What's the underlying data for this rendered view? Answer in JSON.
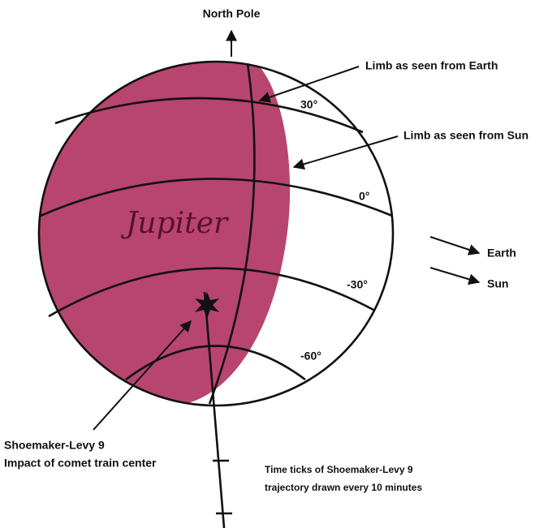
{
  "title": "North Pole",
  "limbs": {
    "earth": "Limb as seen from Earth",
    "sun": "Limb as seen from Sun"
  },
  "latitudes": [
    "30°",
    "0°",
    "-30°",
    "-60°"
  ],
  "planet": "Jupiter",
  "directions": {
    "earth": "Earth",
    "sun": "Sun"
  },
  "impact": {
    "line1": "Shoemaker-Levy 9",
    "line2": "Impact of comet train center"
  },
  "trajectory": {
    "line1": "Time ticks of Shoemaker-Levy 9",
    "line2": "trajectory drawn every 10 minutes"
  }
}
